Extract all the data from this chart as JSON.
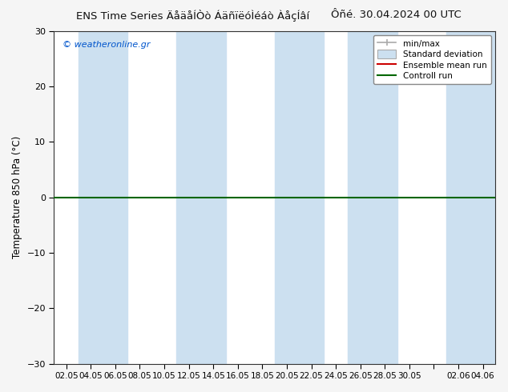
{
  "title": "ENS Time Series ÄåäåÍÒò ÁäñïëóÌéáò ÀåçÍâí",
  "title_date": "Ôñé. 30.04.2024 00 UTC",
  "ylabel": "Temperature 850 hPa (°C)",
  "ylim": [
    -30,
    30
  ],
  "yticks": [
    -30,
    -20,
    -10,
    0,
    10,
    20,
    30
  ],
  "xtick_labels": [
    "02.05",
    "04.05",
    "06.05",
    "08.05",
    "10.05",
    "12.05",
    "14.05",
    "16.05",
    "18.05",
    "20.05",
    "22.05",
    "24.05",
    "26.05",
    "28.05",
    "30.05",
    "",
    "02.06",
    "04.06"
  ],
  "watermark": "© weatheronline.gr",
  "bg_color": "#f5f5f5",
  "plot_bg_color": "#ffffff",
  "band_color": "#cce0f0",
  "hline_color": "#006600",
  "hline_lw": 1.5,
  "fig_width": 6.34,
  "fig_height": 4.9,
  "dpi": 100
}
